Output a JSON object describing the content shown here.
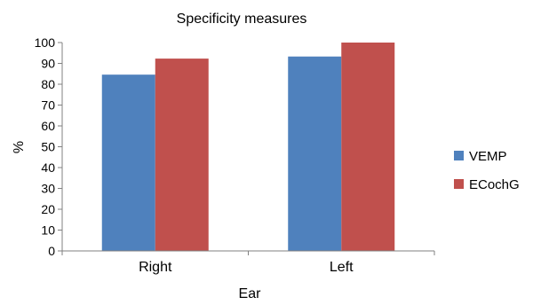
{
  "chart_data": {
    "type": "bar",
    "title": "Specificity measures",
    "xlabel": "Ear",
    "ylabel": "%",
    "categories": [
      "Right",
      "Left"
    ],
    "series": [
      {
        "name": "VEMP",
        "color": "#4f81bd",
        "values": [
          84.6,
          93.3
        ]
      },
      {
        "name": "ECochG",
        "color": "#c0504d",
        "values": [
          92.3,
          100
        ]
      }
    ],
    "ylim": [
      0,
      100
    ],
    "yticks": [
      0,
      10,
      20,
      30,
      40,
      50,
      60,
      70,
      80,
      90,
      100
    ],
    "grid": false,
    "legend": "right"
  }
}
